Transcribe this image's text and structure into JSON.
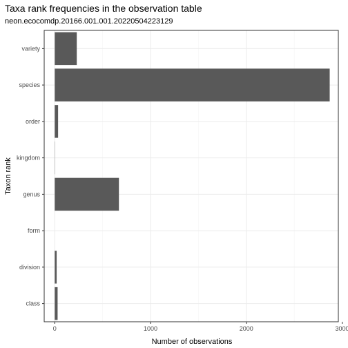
{
  "chart_data": {
    "type": "bar",
    "orientation": "horizontal",
    "title": "Taxa rank frequencies in the observation table",
    "subtitle": "neon.ecocomdp.20166.001.001.20220504223129",
    "xlabel": "Number of observations",
    "ylabel": "Taxon rank",
    "categories": [
      "variety",
      "species",
      "order",
      "kingdom",
      "genus",
      "form",
      "division",
      "class"
    ],
    "values": [
      230,
      2870,
      35,
      2,
      670,
      0,
      20,
      30
    ],
    "xlim": [
      -110,
      2960
    ],
    "xticks": [
      0,
      1000,
      2000,
      3000
    ],
    "xtick_labels": [
      "0",
      "1000",
      "2000",
      "3000"
    ],
    "grid": true,
    "colors": {
      "bar": "#595959",
      "panel_border": "#333333",
      "grid_major": "#ebebeb",
      "grid_minor": "#f5f5f5",
      "background": "#ffffff"
    }
  }
}
